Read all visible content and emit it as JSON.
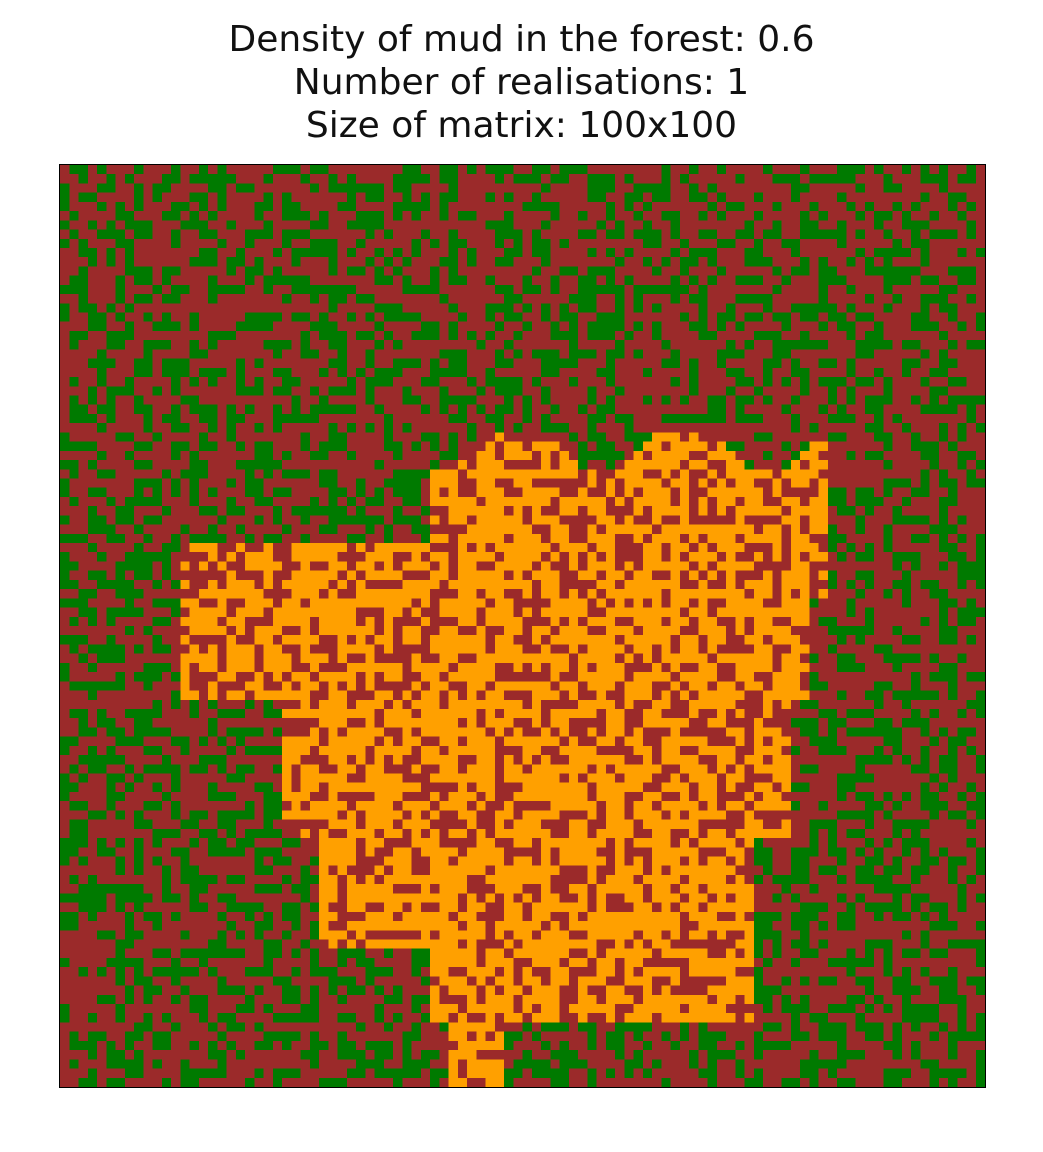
{
  "chart_data": {
    "type": "heatmap",
    "title_lines": [
      "Density of mud in the forest: 0.6",
      "Number of realisations: 1",
      "Size of matrix: 100x100"
    ],
    "xlabel": "",
    "ylabel": "",
    "rows": 100,
    "cols": 100,
    "mud_density": 0.6,
    "realisations": 1,
    "axes_ticks": false,
    "grid": false,
    "legend": "none",
    "categories": [
      "mud",
      "tree",
      "burnt"
    ],
    "colors": {
      "mud": "#9b2a2a",
      "tree": "#007a00",
      "burnt": "#ffa000",
      "frame": "#000000",
      "title": "#111111"
    }
  }
}
